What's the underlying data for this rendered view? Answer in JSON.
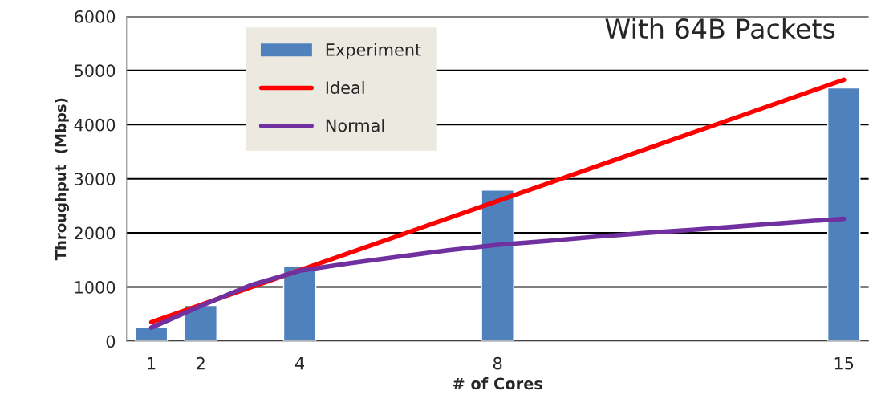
{
  "chart_data": {
    "type": "bar",
    "title": "With 64B Packets",
    "xlabel": "# of Cores",
    "ylabel": "Throughput  (Mbps)",
    "categories": [
      "1",
      "2",
      null,
      "4",
      null,
      null,
      null,
      "8",
      null,
      null,
      null,
      null,
      null,
      null,
      "15"
    ],
    "series": [
      {
        "name": "Experiment",
        "color": "#4f81bd",
        "values": [
          250,
          660,
          null,
          1390,
          null,
          null,
          null,
          2790,
          null,
          null,
          null,
          null,
          null,
          null,
          4680
        ]
      },
      {
        "name": "Ideal",
        "type": "line",
        "color": "#ff0000",
        "values": [
          350,
          670,
          990,
          1310,
          1630,
          1950,
          2270,
          2590,
          2910,
          3230,
          3550,
          3870,
          4190,
          4510,
          4830
        ]
      },
      {
        "name": "Normal",
        "type": "line",
        "color": "#7030a0",
        "values": [
          250,
          650,
          1030,
          1300,
          1440,
          1560,
          1680,
          1780,
          1850,
          1930,
          2000,
          2060,
          2130,
          2200,
          2260
        ]
      }
    ],
    "ylim": [
      0,
      6000
    ],
    "yticks": [
      0,
      1000,
      2000,
      3000,
      4000,
      5000,
      6000
    ],
    "grid": "y",
    "legend": "top left"
  }
}
